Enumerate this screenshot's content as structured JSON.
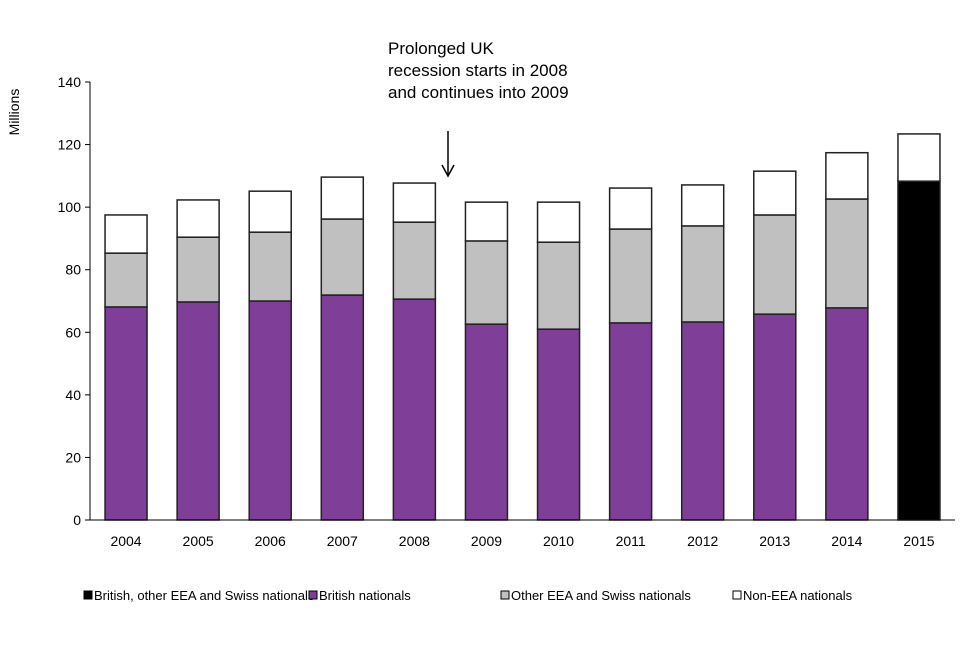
{
  "chart_data": {
    "type": "bar",
    "stacked": true,
    "title": "",
    "xlabel": "",
    "ylabel": "Millions",
    "ylim": [
      0,
      140
    ],
    "yticks": [
      0,
      20,
      40,
      60,
      80,
      100,
      120,
      140
    ],
    "grid": false,
    "legend_position": "bottom",
    "categories": [
      "2004",
      "2005",
      "2006",
      "2007",
      "2008",
      "2009",
      "2010",
      "2011",
      "2012",
      "2013",
      "2014",
      "2015"
    ],
    "series": [
      {
        "name": "British, other EEA and Swiss nationals",
        "color": "#000000",
        "values": [
          null,
          null,
          null,
          null,
          null,
          null,
          null,
          null,
          null,
          null,
          null,
          108.3
        ]
      },
      {
        "name": "British nationals",
        "color": "#7F3F98",
        "values": [
          68.1,
          69.7,
          70.0,
          71.9,
          70.6,
          62.6,
          61.0,
          63.0,
          63.3,
          65.8,
          67.8,
          null
        ]
      },
      {
        "name": "Other EEA and Swiss nationals",
        "color": "#C0C0C0",
        "values": [
          17.2,
          20.7,
          22.0,
          24.3,
          24.6,
          26.6,
          27.8,
          30.0,
          30.7,
          31.7,
          34.8,
          null
        ]
      },
      {
        "name": "Non-EEA nationals",
        "color": "#FFFFFF",
        "values": [
          12.2,
          11.9,
          13.1,
          13.4,
          12.5,
          12.4,
          12.8,
          13.1,
          13.1,
          14.0,
          14.8,
          15.1
        ]
      }
    ],
    "annotation": {
      "lines": [
        "Prolonged UK",
        "recession starts in 2008",
        "and continues into 2009"
      ]
    }
  }
}
